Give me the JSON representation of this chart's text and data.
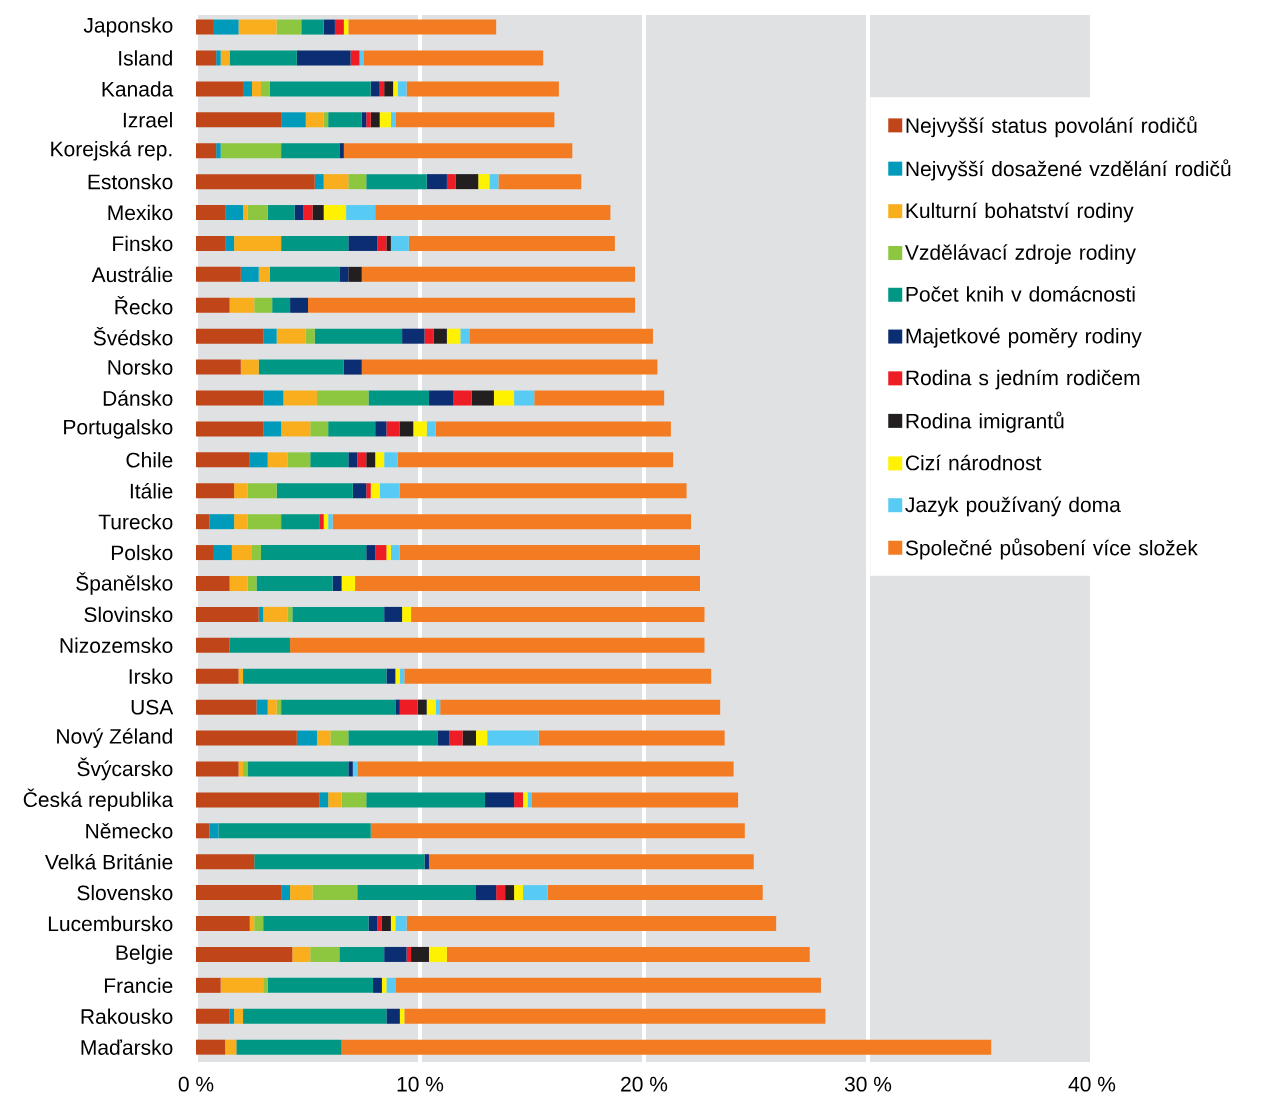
{
  "chart_data": {
    "type": "bar",
    "orientation": "horizontal",
    "stacked": true,
    "categories": [
      "Japonsko",
      "Island",
      "Kanada",
      "Izrael",
      "Korejská rep.",
      "Estonsko",
      "Mexiko",
      "Finsko",
      "Austrálie",
      "Řecko",
      "Švédsko",
      "Norsko",
      "Dánsko",
      "Portugalsko",
      "Chile",
      "Itálie",
      "Turecko",
      "Polsko",
      "Španělsko",
      "Slovinsko",
      "Nizozemsko",
      "Irsko",
      "USA",
      "Nový Zéland",
      "Švýcarsko",
      "Česká republika",
      "Německo",
      "Velká Británie",
      "Slovensko",
      "Lucembursko",
      "Belgie",
      "Francie",
      "Rakousko",
      "Maďarsko"
    ],
    "series": [
      {
        "name": "Nejvyšší status povolání rodičů",
        "color": "#c0461a",
        "values": [
          0.8,
          0.9,
          2.1,
          3.8,
          0.9,
          5.3,
          1.3,
          1.3,
          2.0,
          1.5,
          3.0,
          2.0,
          3.0,
          3.0,
          2.4,
          1.7,
          0.6,
          0.8,
          1.5,
          2.8,
          1.5,
          1.9,
          2.7,
          4.5,
          1.9,
          5.5,
          0.6,
          2.6,
          3.8,
          2.4,
          4.3,
          1.1,
          1.5,
          1.3
        ]
      },
      {
        "name": "Nejvyšší dosažené vzdělání rodičů",
        "color": "#009bbb",
        "values": [
          1.1,
          0.2,
          0.4,
          1.1,
          0.2,
          0.4,
          0.8,
          0.4,
          0.8,
          0,
          0.6,
          0,
          0.9,
          0.8,
          0.8,
          0,
          1.1,
          0.8,
          0,
          0.2,
          0,
          0,
          0.5,
          0.9,
          0,
          0.4,
          0.4,
          0,
          0.4,
          0,
          0,
          0,
          0.2,
          0
        ]
      },
      {
        "name": "Kulturní bohatství rodiny",
        "color": "#f9af1d",
        "values": [
          1.7,
          0.4,
          0.4,
          0.8,
          0,
          1.1,
          0.2,
          2.1,
          0.5,
          1.1,
          1.3,
          0.8,
          1.5,
          1.3,
          0.9,
          0.6,
          0.6,
          0.9,
          0.8,
          1.1,
          0,
          0.2,
          0.4,
          0.6,
          0.2,
          0.6,
          0,
          0,
          1.0,
          0.2,
          0.8,
          1.9,
          0.4,
          0.5
        ]
      },
      {
        "name": "Vzdělávací zdroje rodiny",
        "color": "#8dc63f",
        "values": [
          1.1,
          0,
          0.4,
          0.2,
          2.7,
          0.8,
          0.9,
          0,
          0,
          0.8,
          0.4,
          0,
          2.3,
          0.8,
          1.0,
          1.3,
          1.5,
          0.4,
          0.4,
          0.2,
          0,
          0,
          0.2,
          0.8,
          0.2,
          1.1,
          0,
          0,
          2.0,
          0.4,
          1.3,
          0.2,
          0,
          0
        ]
      },
      {
        "name": "Počet knih v domácnosti",
        "color": "#009784",
        "values": [
          1.0,
          3.0,
          4.5,
          1.5,
          2.6,
          2.7,
          1.2,
          3.0,
          3.1,
          0.8,
          3.9,
          3.8,
          2.7,
          2.1,
          1.7,
          3.4,
          1.7,
          4.7,
          3.4,
          4.1,
          2.7,
          6.4,
          5.1,
          4.0,
          4.5,
          5.3,
          6.8,
          7.6,
          5.3,
          4.7,
          2.0,
          4.7,
          6.4,
          4.7
        ]
      },
      {
        "name": "Majetkové poměry rodiny",
        "color": "#0b2d72",
        "values": [
          0.5,
          2.4,
          0.4,
          0.2,
          0.2,
          0.9,
          0.4,
          1.3,
          0.4,
          0.8,
          1.0,
          0.8,
          1.1,
          0.5,
          0.4,
          0.6,
          0,
          0.4,
          0.4,
          0.8,
          0,
          0.4,
          0.2,
          0.5,
          0.2,
          1.3,
          0,
          0.2,
          0.9,
          0.4,
          1.0,
          0.4,
          0.6,
          0
        ]
      },
      {
        "name": "Rodina s jedním rodičem",
        "color": "#ee1c25",
        "values": [
          0.4,
          0.4,
          0.2,
          0.2,
          0,
          0.4,
          0.4,
          0.4,
          0,
          0,
          0.4,
          0,
          0.8,
          0.6,
          0.4,
          0.2,
          0.2,
          0.5,
          0,
          0,
          0,
          0,
          0.8,
          0.6,
          0,
          0.4,
          0,
          0,
          0.4,
          0.2,
          0.2,
          0,
          0,
          0
        ]
      },
      {
        "name": "Rodina imigrantů",
        "color": "#231f20",
        "values": [
          0,
          0,
          0.4,
          0.4,
          0,
          1.0,
          0.5,
          0.2,
          0.6,
          0,
          0.6,
          0,
          1.0,
          0.6,
          0.4,
          0,
          0,
          0,
          0,
          0,
          0,
          0,
          0.4,
          0.6,
          0,
          0,
          0,
          0,
          0.4,
          0.4,
          0.8,
          0,
          0,
          0
        ]
      },
      {
        "name": "Cizí národnost",
        "color": "#fff200",
        "values": [
          0.2,
          0,
          0.2,
          0.5,
          0,
          0.5,
          1.0,
          0,
          0,
          0,
          0.6,
          0,
          0.9,
          0.6,
          0.4,
          0.4,
          0.2,
          0.2,
          0.6,
          0.4,
          0,
          0.2,
          0.4,
          0.5,
          0,
          0.2,
          0,
          0,
          0.4,
          0.2,
          0.8,
          0.2,
          0.2,
          0
        ]
      },
      {
        "name": "Jazyk používaný doma",
        "color": "#58cbf5",
        "values": [
          0,
          0.2,
          0.4,
          0.2,
          0,
          0.4,
          1.3,
          0.8,
          0,
          0,
          0.4,
          0,
          0.9,
          0.4,
          0.6,
          0.9,
          0.2,
          0.4,
          0,
          0,
          0,
          0.2,
          0.2,
          2.3,
          0.2,
          0.2,
          0,
          0,
          1.1,
          0.5,
          0,
          0.4,
          0,
          0
        ]
      },
      {
        "name": "Společné působení více složek",
        "color": "#f37c22",
        "values": [
          6.6,
          8.0,
          6.8,
          7.1,
          10.2,
          3.7,
          10.5,
          9.2,
          12.2,
          14.6,
          8.2,
          13.2,
          5.8,
          10.5,
          12.3,
          12.8,
          16.0,
          13.4,
          15.4,
          13.1,
          18.5,
          13.7,
          12.5,
          8.3,
          16.8,
          9.2,
          16.7,
          14.5,
          9.6,
          16.5,
          16.2,
          19.0,
          18.8,
          29.0
        ]
      }
    ],
    "xlim": [
      0,
      40
    ],
    "xticks": [
      {
        "value": 0,
        "label": "0 %"
      },
      {
        "value": 10,
        "label": "10 %"
      },
      {
        "value": 20,
        "label": "20 %"
      },
      {
        "value": 30,
        "label": "30 %"
      },
      {
        "value": 40,
        "label": "40 %"
      }
    ],
    "grid": "x",
    "legend": "right"
  }
}
